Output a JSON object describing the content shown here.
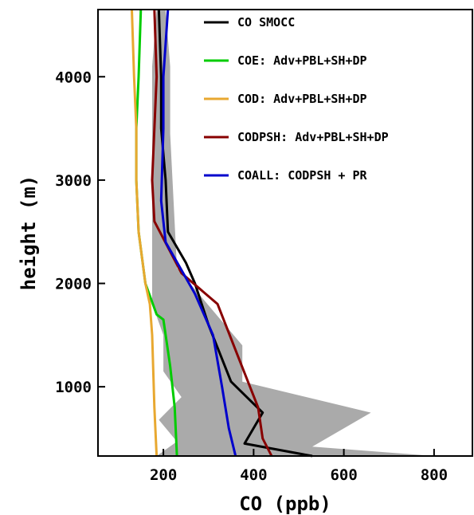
{
  "chart_data": {
    "type": "line",
    "xlabel": "CO (ppb)",
    "ylabel": "height (m)",
    "xlim": [
      55,
      885
    ],
    "ylim": [
      330,
      4650
    ],
    "xticks": [
      {
        "value": 200,
        "label": "200"
      },
      {
        "value": 400,
        "label": "400"
      },
      {
        "value": 600,
        "label": "600"
      },
      {
        "value": 800,
        "label": "800"
      }
    ],
    "yticks": [
      {
        "value": 1000,
        "label": "1000"
      },
      {
        "value": 2000,
        "label": "2000"
      },
      {
        "value": 3000,
        "label": "3000"
      },
      {
        "value": 4000,
        "label": "4000"
      }
    ],
    "grid": false,
    "legend_position": "top-right",
    "shaded_range": {
      "color": "#aaaaaa",
      "upper": [
        [
          800,
          330
        ],
        [
          530,
          420
        ],
        [
          660,
          750
        ],
        [
          375,
          1050
        ],
        [
          375,
          1400
        ],
        [
          230,
          2150
        ],
        [
          215,
          3450
        ],
        [
          215,
          4100
        ],
        [
          205,
          4650
        ]
      ],
      "lower": [
        [
          185,
          330
        ],
        [
          230,
          470
        ],
        [
          190,
          680
        ],
        [
          240,
          900
        ],
        [
          200,
          1150
        ],
        [
          200,
          1500
        ],
        [
          175,
          1800
        ],
        [
          175,
          2450
        ],
        [
          175,
          3500
        ],
        [
          175,
          4100
        ],
        [
          185,
          4650
        ]
      ]
    },
    "series": [
      {
        "name": "CO SMOCC",
        "color": "#000000",
        "points": [
          [
            530,
            330
          ],
          [
            380,
            450
          ],
          [
            420,
            750
          ],
          [
            350,
            1050
          ],
          [
            300,
            1600
          ],
          [
            270,
            2000
          ],
          [
            250,
            2200
          ],
          [
            210,
            2500
          ],
          [
            205,
            3000
          ],
          [
            195,
            3500
          ],
          [
            195,
            4000
          ],
          [
            190,
            4650
          ]
        ]
      },
      {
        "name": "COE: Adv+PBL+SH+DP",
        "color": "#00cc00",
        "points": [
          [
            230,
            330
          ],
          [
            225,
            800
          ],
          [
            215,
            1200
          ],
          [
            200,
            1650
          ],
          [
            185,
            1700
          ],
          [
            160,
            2000
          ],
          [
            145,
            2500
          ],
          [
            140,
            3000
          ],
          [
            140,
            3500
          ],
          [
            145,
            4000
          ],
          [
            150,
            4650
          ]
        ]
      },
      {
        "name": "COD: Adv+PBL+SH+DP",
        "color": "#e8a830",
        "points": [
          [
            185,
            330
          ],
          [
            180,
            800
          ],
          [
            175,
            1500
          ],
          [
            170,
            1800
          ],
          [
            160,
            2000
          ],
          [
            145,
            2500
          ],
          [
            140,
            3000
          ],
          [
            140,
            3500
          ],
          [
            135,
            4000
          ],
          [
            130,
            4650
          ]
        ]
      },
      {
        "name": "CODPSH: Adv+PBL+SH+DP",
        "color": "#880000",
        "points": [
          [
            440,
            330
          ],
          [
            420,
            500
          ],
          [
            410,
            800
          ],
          [
            365,
            1300
          ],
          [
            320,
            1800
          ],
          [
            240,
            2100
          ],
          [
            180,
            2600
          ],
          [
            175,
            3000
          ],
          [
            180,
            3500
          ],
          [
            185,
            4000
          ],
          [
            180,
            4650
          ]
        ]
      },
      {
        "name": "COALL: CODPSH + PR",
        "color": "#0000cc",
        "points": [
          [
            360,
            330
          ],
          [
            345,
            600
          ],
          [
            330,
            1000
          ],
          [
            310,
            1500
          ],
          [
            270,
            1900
          ],
          [
            205,
            2400
          ],
          [
            195,
            2800
          ],
          [
            200,
            3500
          ],
          [
            200,
            4000
          ],
          [
            210,
            4650
          ]
        ]
      }
    ]
  }
}
